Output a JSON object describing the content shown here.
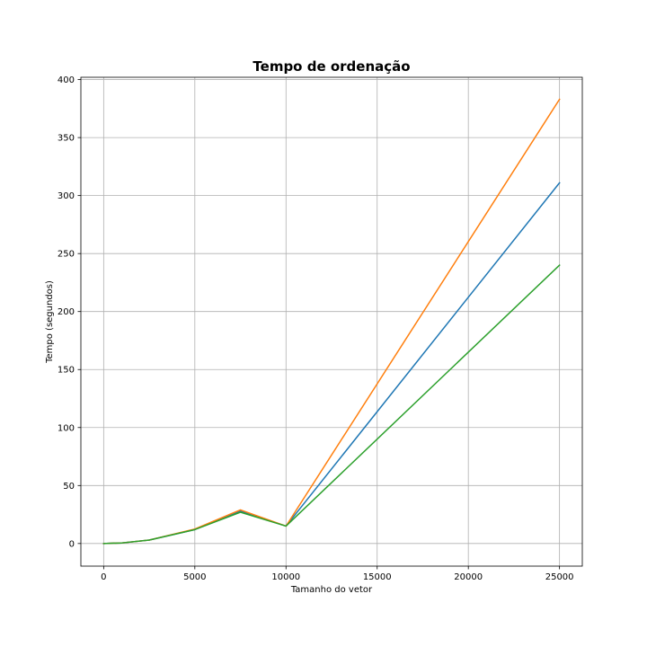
{
  "chart_data": {
    "type": "line",
    "title": "Tempo de ordenação",
    "xlabel": "Tamanho do vetor",
    "ylabel": "Tempo (segundos)",
    "xlim": [
      -1250,
      26250
    ],
    "ylim": [
      -19.5,
      402
    ],
    "grid": true,
    "legend": "none",
    "x": [
      0,
      1000,
      2500,
      5000,
      7500,
      10000,
      25000
    ],
    "x_ticks": [
      0,
      5000,
      10000,
      15000,
      20000,
      25000
    ],
    "x_tick_labels": [
      "0",
      "5000",
      "10000",
      "15000",
      "20000",
      "25000"
    ],
    "y_ticks": [
      0,
      50,
      100,
      150,
      200,
      250,
      300,
      350,
      400
    ],
    "y_tick_labels": [
      "0",
      "50",
      "100",
      "150",
      "200",
      "250",
      "300",
      "350",
      "400"
    ],
    "series": [
      {
        "color": "#1f77b4",
        "values": [
          0,
          0.5,
          3,
          12,
          28,
          15,
          311
        ]
      },
      {
        "color": "#ff7f0e",
        "values": [
          0,
          0.5,
          3,
          12.5,
          29,
          15,
          383
        ]
      },
      {
        "color": "#2ca02c",
        "values": [
          0,
          0.5,
          3,
          12,
          27,
          15,
          240
        ]
      }
    ]
  }
}
